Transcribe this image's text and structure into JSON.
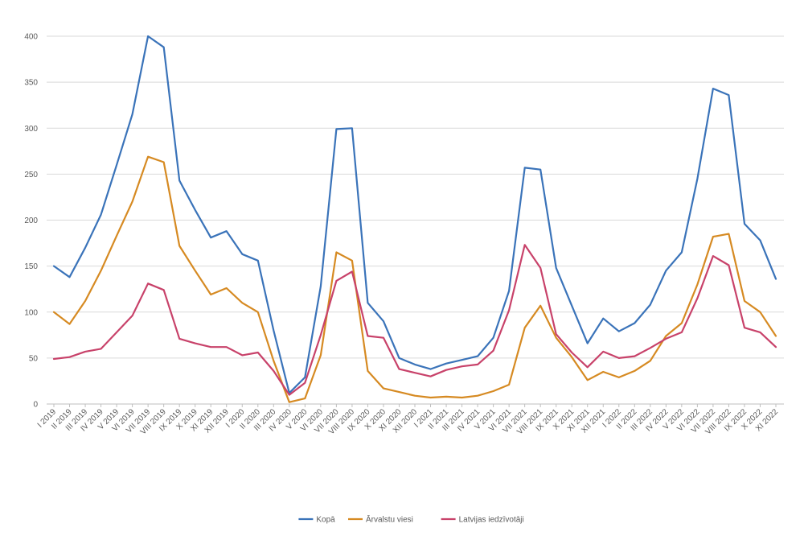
{
  "chart_data": {
    "type": "line",
    "title": "",
    "xlabel": "",
    "ylabel": "",
    "ylim": [
      0,
      400
    ],
    "yticks": [
      0,
      50,
      100,
      150,
      200,
      250,
      300,
      350,
      400
    ],
    "grid": true,
    "legend_position": "bottom",
    "categories": [
      "I 2019",
      "II 2019",
      "III 2019",
      "IV 2019",
      "V 2019",
      "VI 2019",
      "VII 2019",
      "VIII 2019",
      "IX 2019",
      "X 2019",
      "XI 2019",
      "XII 2019",
      "I 2020",
      "II 2020",
      "III 2020",
      "IV 2020",
      "V 2020",
      "VI 2020",
      "VII 2020",
      "VIII 2020",
      "IX 2020",
      "X 2020",
      "XI 2020",
      "XII 2020",
      "I 2021",
      "II 2021",
      "III 2021",
      "IV 2021",
      "V 2021",
      "VI 2021",
      "VII 2021",
      "VIII 2021",
      "IX 2021",
      "X 2021",
      "XI 2021",
      "XII 2021",
      "I 2022",
      "II 2022",
      "III 2022",
      "IV 2022",
      "V 2022",
      "VI 2022",
      "VII 2022",
      "VIII 2022",
      "IX 2022",
      "X 2022",
      "XI 2022"
    ],
    "series": [
      {
        "name": "Kopā",
        "color": "#3a73b9",
        "values": [
          150,
          138,
          170,
          206,
          260,
          315,
          400,
          388,
          243,
          211,
          181,
          188,
          163,
          156,
          80,
          12,
          29,
          128,
          299,
          300,
          110,
          90,
          50,
          43,
          38,
          44,
          48,
          52,
          72,
          123,
          257,
          255,
          148,
          107,
          66,
          93,
          79,
          88,
          108,
          145,
          165,
          245,
          343,
          336,
          196,
          178,
          136
        ]
      },
      {
        "name": "Ārvalstu viesi",
        "color": "#d68a22",
        "values": [
          100,
          87,
          112,
          145,
          183,
          220,
          269,
          263,
          172,
          145,
          119,
          126,
          110,
          100,
          47,
          2,
          6,
          53,
          165,
          156,
          36,
          17,
          13,
          9,
          7,
          8,
          7,
          9,
          14,
          21,
          83,
          107,
          72,
          51,
          26,
          35,
          29,
          36,
          47,
          74,
          88,
          130,
          182,
          185,
          112,
          100,
          74
        ]
      },
      {
        "name": "Latvijas iedzīvotāji",
        "color": "#c8426a",
        "values": [
          49,
          51,
          57,
          60,
          78,
          96,
          131,
          124,
          71,
          66,
          62,
          62,
          53,
          56,
          36,
          10,
          23,
          75,
          134,
          144,
          74,
          72,
          38,
          34,
          30,
          37,
          41,
          43,
          58,
          102,
          173,
          148,
          76,
          56,
          40,
          57,
          50,
          52,
          61,
          71,
          78,
          115,
          161,
          151,
          83,
          78,
          62
        ]
      }
    ]
  }
}
